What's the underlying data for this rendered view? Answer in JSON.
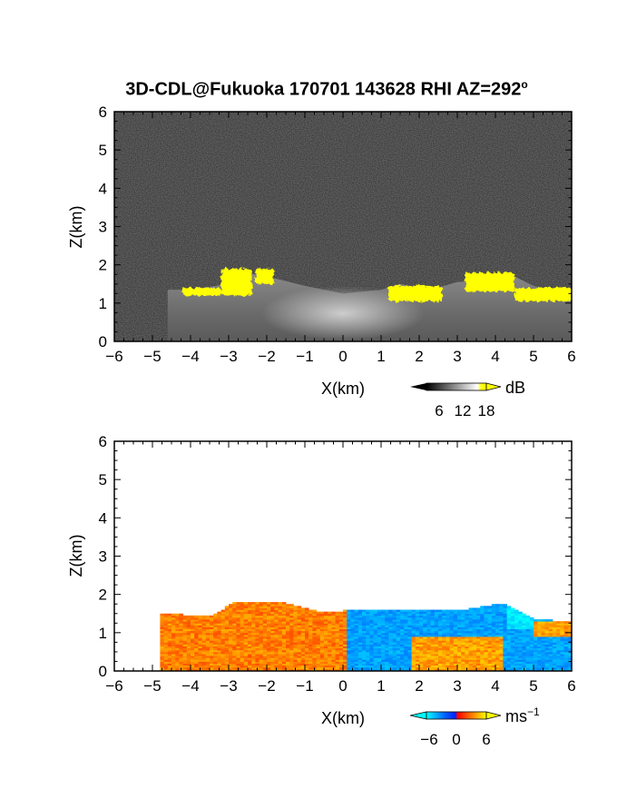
{
  "title": {
    "main": "3D-CDL@Fukuoka 170701 143628 RHI AZ=292",
    "degree": "o"
  },
  "chart_data": [
    {
      "type": "heatmap",
      "name": "reflectivity",
      "xlabel": "X(km)",
      "ylabel": "Z(km)",
      "xlim": [
        -6,
        6
      ],
      "ylim": [
        0,
        6
      ],
      "xticks": [
        -6,
        -5,
        -4,
        -3,
        -2,
        -1,
        0,
        1,
        2,
        3,
        4,
        5,
        6
      ],
      "yticks": [
        0,
        1,
        2,
        3,
        4,
        5,
        6
      ],
      "colorbar": {
        "unit": "dB",
        "ticks": [
          6,
          12,
          18
        ],
        "range": [
          0,
          21
        ],
        "colors": [
          "#000000",
          "#ffffff",
          "#ffff00"
        ]
      },
      "background": "#2b2b2b",
      "bright_layer_top_km": [
        [
          -4.6,
          1.35
        ],
        [
          -4,
          1.35
        ],
        [
          -3,
          1.5
        ],
        [
          -2.6,
          1.8
        ],
        [
          -2,
          1.7
        ],
        [
          -1,
          1.45
        ],
        [
          0,
          1.25
        ],
        [
          1,
          1.35
        ],
        [
          1.5,
          1.5
        ],
        [
          2.3,
          1.35
        ],
        [
          3,
          1.55
        ],
        [
          4,
          1.6
        ],
        [
          4.4,
          1.75
        ],
        [
          5,
          1.45
        ],
        [
          6,
          1.2
        ]
      ],
      "saturated_regions": [
        {
          "x": [
            -4.2,
            -3.2
          ],
          "z": [
            1.2,
            1.4
          ]
        },
        {
          "x": [
            -3.2,
            -2.4
          ],
          "z": [
            1.2,
            1.9
          ]
        },
        {
          "x": [
            -2.3,
            -1.8
          ],
          "z": [
            1.5,
            1.9
          ]
        },
        {
          "x": [
            1.2,
            2.6
          ],
          "z": [
            1.05,
            1.45
          ]
        },
        {
          "x": [
            3.2,
            4.5
          ],
          "z": [
            1.3,
            1.8
          ]
        },
        {
          "x": [
            4.5,
            6.0
          ],
          "z": [
            1.05,
            1.4
          ]
        }
      ]
    },
    {
      "type": "heatmap",
      "name": "doppler_velocity",
      "xlabel": "X(km)",
      "ylabel": "Z(km)",
      "xlim": [
        -6,
        6
      ],
      "ylim": [
        0,
        6
      ],
      "xticks": [
        -6,
        -5,
        -4,
        -3,
        -2,
        -1,
        0,
        1,
        2,
        3,
        4,
        5,
        6
      ],
      "yticks": [
        0,
        1,
        2,
        3,
        4,
        5,
        6
      ],
      "colorbar": {
        "unit": "ms",
        "unit_exp": "−1",
        "ticks": [
          "−6",
          "0",
          "6"
        ],
        "range": [
          -8,
          8
        ],
        "colors": [
          "#00ffff",
          "#0044ff",
          "#ff0000",
          "#ffff00"
        ]
      },
      "echo_top_km": [
        [
          -4.8,
          1.5
        ],
        [
          -3.5,
          1.4
        ],
        [
          -2.8,
          1.8
        ],
        [
          -1.5,
          1.75
        ],
        [
          -0.5,
          1.5
        ],
        [
          0.5,
          1.6
        ],
        [
          2,
          1.6
        ],
        [
          3,
          1.55
        ],
        [
          4.2,
          1.75
        ],
        [
          5,
          1.35
        ],
        [
          6,
          1.25
        ]
      ],
      "regions": [
        {
          "x": [
            -4.8,
            -0.05
          ],
          "z": [
            0,
            1.8
          ],
          "sign": "positive",
          "value_ms": 4
        },
        {
          "x": [
            0.05,
            4.3
          ],
          "z": [
            0.6,
            1.75
          ],
          "sign": "negative",
          "value_ms": -4
        },
        {
          "x": [
            4.3,
            5.0
          ],
          "z": [
            1.1,
            1.7
          ],
          "sign": "negative",
          "value_ms": -7
        },
        {
          "x": [
            1.8,
            4.2
          ],
          "z": [
            0,
            0.9
          ],
          "sign": "positive",
          "value_ms": 5
        },
        {
          "x": [
            5.0,
            6.0
          ],
          "z": [
            0.9,
            1.3
          ],
          "sign": "positive",
          "value_ms": 5
        }
      ]
    }
  ]
}
